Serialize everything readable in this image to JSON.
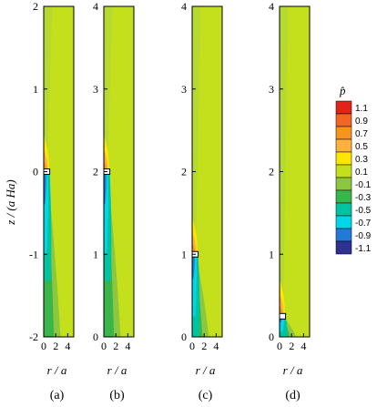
{
  "chart_data": {
    "type": "heatmap",
    "ylabel": "z / (a Ha)",
    "colorbar": {
      "title": "p̂",
      "levels": [
        "1.1",
        "0.9",
        "0.7",
        "0.5",
        "0.3",
        "0.1",
        "-0.1",
        "-0.3",
        "-0.5",
        "-0.7",
        "-0.9",
        "-1.1"
      ],
      "colors": [
        "#e2231a",
        "#f26522",
        "#f7941d",
        "#fbb040",
        "#ffe600",
        "#c4df1b",
        "#8dc63f",
        "#39b54a",
        "#00c4a0",
        "#00d7e6",
        "#1f7bd6",
        "#2e3192"
      ]
    },
    "panels": [
      {
        "label": "(a)",
        "xlabel": "r / a",
        "xlim": [
          0,
          5
        ],
        "xticks": [
          "0",
          "2",
          "4"
        ],
        "ylim": [
          -2,
          2
        ],
        "yticks": [
          "-2",
          "-1",
          "0",
          "1",
          "2"
        ],
        "body_z": 0
      },
      {
        "label": "(b)",
        "xlabel": "r / a",
        "xlim": [
          0,
          5
        ],
        "xticks": [
          "0",
          "2",
          "4"
        ],
        "ylim": [
          0,
          4
        ],
        "yticks": [
          "0",
          "1",
          "2",
          "3",
          "4"
        ],
        "body_z": 2
      },
      {
        "label": "(c)",
        "xlabel": "r / a",
        "xlim": [
          0,
          5
        ],
        "xticks": [
          "0",
          "2",
          "4"
        ],
        "ylim": [
          0,
          4
        ],
        "yticks": [
          "0",
          "1",
          "2",
          "3",
          "4"
        ],
        "body_z": 1
      },
      {
        "label": "(d)",
        "xlabel": "r / a",
        "xlim": [
          0,
          5
        ],
        "xticks": [
          "0",
          "2",
          "4"
        ],
        "ylim": [
          0,
          4
        ],
        "yticks": [
          "0",
          "1",
          "2",
          "3",
          "4"
        ],
        "body_z": 0.25
      }
    ]
  }
}
